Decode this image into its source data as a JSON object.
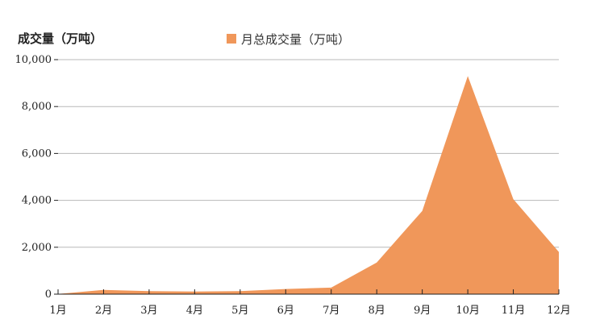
{
  "chart_data": {
    "type": "area",
    "ylabel": "成交量（万吨）",
    "legend_position": "top-center",
    "grid": true,
    "ylim": [
      0,
      10000
    ],
    "yticks": [
      "0",
      "2,000",
      "4,000",
      "6,000",
      "8,000",
      "10,000"
    ],
    "ytick_values": [
      0,
      2000,
      4000,
      6000,
      8000,
      10000
    ],
    "categories": [
      "1月",
      "2月",
      "3月",
      "4月",
      "5月",
      "6月",
      "7月",
      "8月",
      "9月",
      "10月",
      "11月",
      "12月"
    ],
    "series": [
      {
        "name": "月总成交量（万吨）",
        "color": "#f0975a",
        "values": [
          10,
          180,
          130,
          110,
          130,
          220,
          280,
          1350,
          3550,
          9300,
          4050,
          1800
        ]
      }
    ]
  }
}
